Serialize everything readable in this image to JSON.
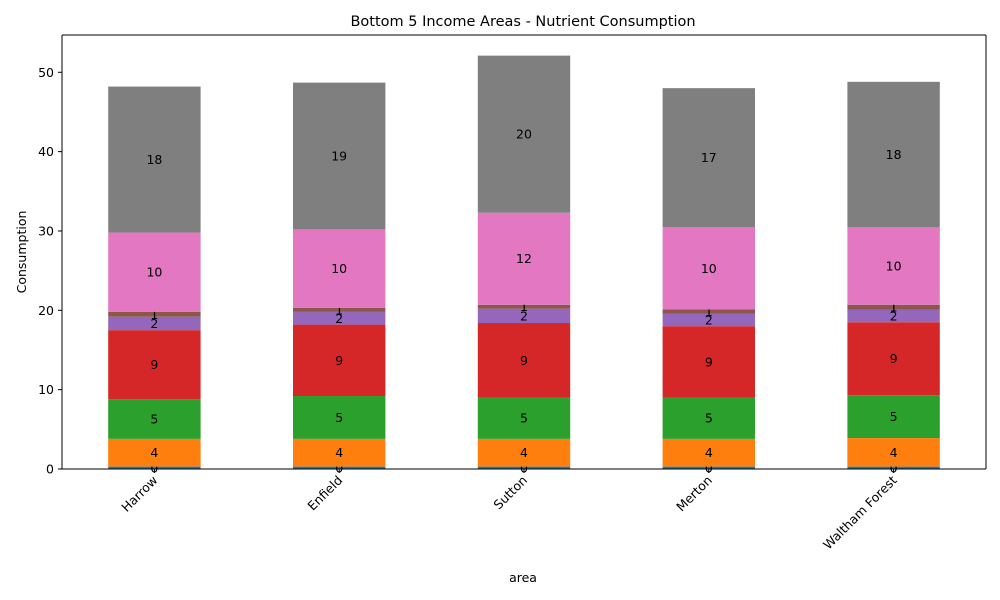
{
  "chart_data": {
    "type": "bar",
    "stacked": true,
    "title": "Bottom 5 Income Areas - Nutrient Consumption",
    "xlabel": "area",
    "ylabel": "Consumption",
    "ylim": [
      0,
      54.7
    ],
    "yticks": [
      0,
      10,
      20,
      30,
      40,
      50
    ],
    "grid": false,
    "legend": "none",
    "categories": [
      "Harrow",
      "Enfield",
      "Sutton",
      "Merton",
      "Waltham Forest"
    ],
    "series": [
      {
        "color": "#1f77b4",
        "values": [
          0.3,
          0.3,
          0.3,
          0.3,
          0.3
        ],
        "labels": [
          "0",
          "0",
          "0",
          "0",
          "0"
        ]
      },
      {
        "color": "#ff7f0e",
        "values": [
          3.5,
          3.5,
          3.5,
          3.5,
          3.6
        ],
        "labels": [
          "4",
          "4",
          "4",
          "4",
          "4"
        ]
      },
      {
        "color": "#2ca02c",
        "values": [
          5.0,
          5.4,
          5.2,
          5.2,
          5.4
        ],
        "labels": [
          "5",
          "5",
          "5",
          "5",
          "5"
        ]
      },
      {
        "color": "#d62728",
        "values": [
          8.7,
          9.0,
          9.4,
          9.0,
          9.2
        ],
        "labels": [
          "9",
          "9",
          "9",
          "9",
          "9"
        ]
      },
      {
        "color": "#9467bd",
        "values": [
          1.7,
          1.6,
          1.8,
          1.6,
          1.6
        ],
        "labels": [
          "2",
          "2",
          "2",
          "2",
          "2"
        ]
      },
      {
        "color": "#8c564b",
        "values": [
          0.6,
          0.5,
          0.5,
          0.5,
          0.6
        ],
        "labels": [
          "1",
          "1",
          "1",
          "1",
          "1"
        ]
      },
      {
        "color": "#e377c2",
        "values": [
          10.0,
          9.9,
          11.6,
          10.4,
          9.8
        ],
        "labels": [
          "10",
          "10",
          "12",
          "10",
          "10"
        ]
      },
      {
        "color": "#7f7f7f",
        "values": [
          18.4,
          18.5,
          19.8,
          17.5,
          18.3
        ],
        "labels": [
          "18",
          "19",
          "20",
          "17",
          "18"
        ]
      }
    ]
  }
}
